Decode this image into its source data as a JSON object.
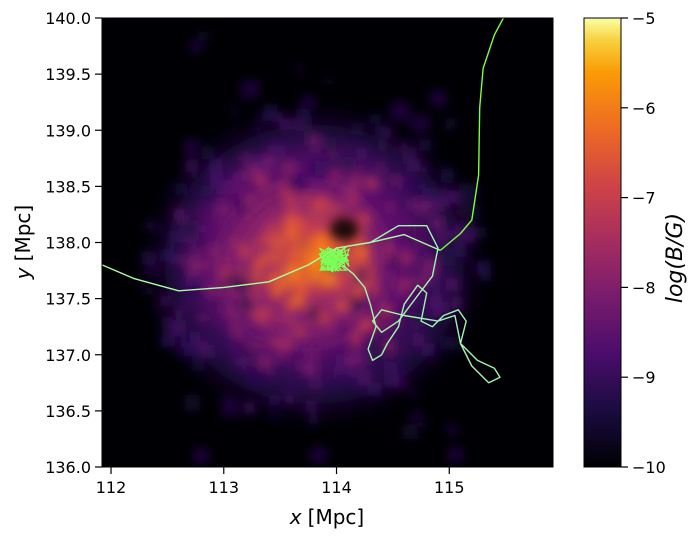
{
  "chart_data": {
    "type": "heatmap",
    "title": "",
    "xlabel_var": "x",
    "xlabel_unit": "[Mpc]",
    "ylabel_var": "y",
    "ylabel_unit": "[Mpc]",
    "xlim": [
      111.92,
      115.92
    ],
    "ylim": [
      136.0,
      140.0
    ],
    "x_ticks": [
      112,
      113,
      114,
      115
    ],
    "x_tick_labels": [
      "112",
      "113",
      "114",
      "115"
    ],
    "y_ticks": [
      136.0,
      136.5,
      137.0,
      137.5,
      138.0,
      138.5,
      139.0,
      139.5,
      140.0
    ],
    "y_tick_labels": [
      "136.0",
      "136.5",
      "137.0",
      "137.5",
      "138.0",
      "138.5",
      "139.0",
      "139.5",
      "140.0"
    ],
    "colorbar": {
      "label": "log(B/G)",
      "colormap": "inferno",
      "range": [
        -10,
        -5
      ],
      "ticks": [
        -10,
        -9,
        -8,
        -7,
        -6,
        -5
      ],
      "tick_labels": [
        "−10",
        "−9",
        "−8",
        "−7",
        "−6",
        "−5"
      ]
    },
    "cluster_center": [
      113.98,
      137.85
    ],
    "trajectories": [
      {
        "color": "#7fff3a",
        "points": [
          [
            114.92,
            137.93
          ],
          [
            115.1,
            138.08
          ],
          [
            115.2,
            138.2
          ],
          [
            115.26,
            138.6
          ],
          [
            115.27,
            139.2
          ],
          [
            115.3,
            139.55
          ],
          [
            115.4,
            139.85
          ],
          [
            115.48,
            140.0
          ]
        ]
      },
      {
        "color": "#a8ffa0",
        "points": [
          [
            111.92,
            137.8
          ],
          [
            112.2,
            137.68
          ],
          [
            112.6,
            137.57
          ],
          [
            113.0,
            137.6
          ],
          [
            113.4,
            137.65
          ],
          [
            113.75,
            137.8
          ],
          [
            114.0,
            137.95
          ],
          [
            114.3,
            138.0
          ],
          [
            114.6,
            138.07
          ],
          [
            114.92,
            137.93
          ]
        ]
      },
      {
        "color": "#9ff7ae",
        "points": [
          [
            114.3,
            138.0
          ],
          [
            114.55,
            138.15
          ],
          [
            114.8,
            138.15
          ],
          [
            114.9,
            137.95
          ],
          [
            114.85,
            137.7
          ],
          [
            114.7,
            137.5
          ],
          [
            114.55,
            137.3
          ],
          [
            114.4,
            137.2
          ],
          [
            114.32,
            137.3
          ],
          [
            114.4,
            137.4
          ],
          [
            114.6,
            137.35
          ],
          [
            114.9,
            137.3
          ],
          [
            115.05,
            137.35
          ],
          [
            115.1,
            137.1
          ],
          [
            115.25,
            136.95
          ],
          [
            115.4,
            136.88
          ],
          [
            115.45,
            136.8
          ],
          [
            115.35,
            136.75
          ],
          [
            115.2,
            136.9
          ],
          [
            115.1,
            137.1
          ],
          [
            115.15,
            137.3
          ],
          [
            115.08,
            137.4
          ],
          [
            114.95,
            137.35
          ],
          [
            114.85,
            137.25
          ],
          [
            114.75,
            137.3
          ],
          [
            114.8,
            137.55
          ],
          [
            114.72,
            137.62
          ],
          [
            114.6,
            137.45
          ],
          [
            114.55,
            137.25
          ],
          [
            114.45,
            137.1
          ],
          [
            114.4,
            137.0
          ],
          [
            114.32,
            136.95
          ],
          [
            114.28,
            137.05
          ],
          [
            114.35,
            137.25
          ],
          [
            114.3,
            137.45
          ],
          [
            114.25,
            137.6
          ],
          [
            114.15,
            137.72
          ],
          [
            114.05,
            137.8
          ]
        ]
      }
    ]
  }
}
